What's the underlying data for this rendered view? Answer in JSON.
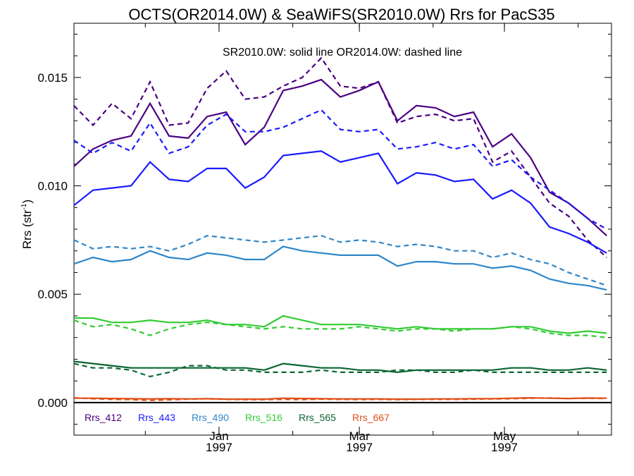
{
  "chart_data": {
    "type": "line",
    "title": "OCTS(OR2014.0W) & SeaWiFS(SR2010.0W)  Rrs for PacS35",
    "annotation": "SR2010.0W: solid line   OR2014.0W: dashed line",
    "ylabel": "Rrs (str",
    "ylabel_sup": "-1",
    "ylabel_close": ")",
    "ylim": [
      -0.0015,
      0.0175
    ],
    "xlim": [
      "1996-11-01",
      "1997-06-15"
    ],
    "ytick_values": [
      0.0,
      0.005,
      0.01,
      0.015
    ],
    "ytick_labels": [
      "0.000",
      "0.005",
      "0.010",
      "0.015"
    ],
    "xtick_labels": [
      {
        "date": "1997-01-01",
        "month": "Jan",
        "year": "1997"
      },
      {
        "date": "1997-03-01",
        "month": "Mar",
        "year": "1997"
      },
      {
        "date": "1997-05-01",
        "month": "May",
        "year": "1997"
      }
    ],
    "x": [
      "1996-11-01",
      "1996-11-09",
      "1996-11-17",
      "1996-11-25",
      "1996-12-03",
      "1996-12-11",
      "1996-12-19",
      "1996-12-27",
      "1997-01-04",
      "1997-01-12",
      "1997-01-20",
      "1997-01-28",
      "1997-02-05",
      "1997-02-13",
      "1997-02-21",
      "1997-03-01",
      "1997-03-09",
      "1997-03-17",
      "1997-03-25",
      "1997-04-02",
      "1997-04-10",
      "1997-04-18",
      "1997-04-26",
      "1997-05-04",
      "1997-05-12",
      "1997-05-20",
      "1997-05-28",
      "1997-06-05",
      "1997-06-13"
    ],
    "series": [
      {
        "name": "Rrs_412",
        "color": "#4b0082",
        "solid": [
          0.0109,
          0.0117,
          0.0121,
          0.0123,
          0.0138,
          0.0123,
          0.0122,
          0.0132,
          0.0134,
          0.0119,
          0.0127,
          0.0144,
          0.0146,
          0.0149,
          0.0141,
          0.0144,
          0.0148,
          0.013,
          0.0137,
          0.0136,
          0.0132,
          0.0134,
          0.0118,
          0.0124,
          0.0113,
          0.0097,
          0.0092,
          0.0085,
          0.0077
        ],
        "dashed": [
          0.0137,
          0.0128,
          0.0138,
          0.0131,
          0.0148,
          0.0128,
          0.0129,
          0.0145,
          0.0153,
          0.014,
          0.0141,
          0.0146,
          0.015,
          0.0159,
          0.0146,
          0.0145,
          0.0148,
          0.0129,
          0.0132,
          0.0133,
          0.013,
          0.0131,
          0.0111,
          0.0116,
          0.0104,
          0.0092,
          0.0086,
          0.0075,
          0.0067
        ]
      },
      {
        "name": "Rrs_443",
        "color": "#1a1aff",
        "solid": [
          0.0091,
          0.0098,
          0.0099,
          0.01,
          0.0111,
          0.0103,
          0.0102,
          0.0108,
          0.0108,
          0.0099,
          0.0104,
          0.0114,
          0.0115,
          0.0116,
          0.0111,
          0.0113,
          0.0115,
          0.0101,
          0.0106,
          0.0105,
          0.0102,
          0.0103,
          0.0094,
          0.0098,
          0.0092,
          0.0081,
          0.0078,
          0.0074,
          0.0069
        ],
        "dashed": [
          0.0121,
          0.0115,
          0.012,
          0.0116,
          0.0129,
          0.0115,
          0.0118,
          0.0128,
          0.0133,
          0.0125,
          0.0125,
          0.0127,
          0.0131,
          0.0135,
          0.0126,
          0.0125,
          0.0126,
          0.0117,
          0.0118,
          0.012,
          0.0117,
          0.0119,
          0.0109,
          0.0112,
          0.0104,
          0.0098,
          0.0092,
          0.0085,
          0.008
        ]
      },
      {
        "name": "Rrs_490",
        "color": "#2e86c8",
        "solid": [
          0.0064,
          0.0067,
          0.0065,
          0.0066,
          0.007,
          0.0067,
          0.0066,
          0.0069,
          0.0068,
          0.0066,
          0.0066,
          0.0072,
          0.007,
          0.0069,
          0.0068,
          0.0068,
          0.0068,
          0.0063,
          0.0065,
          0.0065,
          0.0064,
          0.0064,
          0.0062,
          0.0063,
          0.0061,
          0.0057,
          0.0055,
          0.0054,
          0.0052
        ],
        "dashed": [
          0.0075,
          0.0071,
          0.0072,
          0.0071,
          0.0072,
          0.007,
          0.0073,
          0.0077,
          0.0076,
          0.0075,
          0.0074,
          0.0075,
          0.0076,
          0.0077,
          0.0074,
          0.0075,
          0.0074,
          0.0072,
          0.0073,
          0.0072,
          0.007,
          0.007,
          0.0067,
          0.0069,
          0.0066,
          0.0064,
          0.006,
          0.0057,
          0.0054
        ]
      },
      {
        "name": "Rrs_516",
        "color": "#33cc33",
        "solid": [
          0.0039,
          0.0039,
          0.0037,
          0.0037,
          0.0038,
          0.0037,
          0.0037,
          0.0038,
          0.0036,
          0.0036,
          0.0035,
          0.004,
          0.0038,
          0.0036,
          0.0036,
          0.0036,
          0.0035,
          0.0034,
          0.0035,
          0.0034,
          0.0034,
          0.0034,
          0.0034,
          0.0035,
          0.0035,
          0.0033,
          0.0032,
          0.0033,
          0.0032
        ],
        "dashed": [
          0.0038,
          0.0035,
          0.0036,
          0.0034,
          0.0031,
          0.0034,
          0.0036,
          0.0037,
          0.0036,
          0.0035,
          0.0034,
          0.0035,
          0.0034,
          0.0034,
          0.0034,
          0.0035,
          0.0034,
          0.0033,
          0.0034,
          0.0034,
          0.0033,
          0.0034,
          0.0034,
          0.0035,
          0.0034,
          0.0032,
          0.0031,
          0.0031,
          0.003
        ]
      },
      {
        "name": "Rrs_565",
        "color": "#0a6632",
        "solid": [
          0.0019,
          0.0018,
          0.0017,
          0.0016,
          0.0016,
          0.0016,
          0.0016,
          0.0016,
          0.0016,
          0.0016,
          0.0015,
          0.0018,
          0.0017,
          0.0016,
          0.0016,
          0.0015,
          0.0015,
          0.0014,
          0.0015,
          0.0015,
          0.0015,
          0.0015,
          0.0015,
          0.0016,
          0.0016,
          0.0015,
          0.0015,
          0.0016,
          0.0015
        ],
        "dashed": [
          0.0018,
          0.0016,
          0.0016,
          0.0015,
          0.0012,
          0.0014,
          0.0017,
          0.0017,
          0.0015,
          0.0015,
          0.0014,
          0.0014,
          0.0014,
          0.0015,
          0.0014,
          0.0014,
          0.0014,
          0.0015,
          0.0015,
          0.0014,
          0.0014,
          0.0015,
          0.0014,
          0.0014,
          0.0014,
          0.0014,
          0.0014,
          0.0014,
          0.0014
        ]
      },
      {
        "name": "Rrs_667",
        "color": "#e0501a",
        "solid": [
          0.0002,
          0.0002,
          0.00019,
          0.00018,
          0.00017,
          0.00018,
          0.00017,
          0.00018,
          0.00016,
          0.00016,
          0.00016,
          0.0002,
          0.00019,
          0.00018,
          0.00017,
          0.00017,
          0.00017,
          0.00016,
          0.00016,
          0.00017,
          0.00017,
          0.00018,
          0.00018,
          0.0002,
          0.00022,
          0.0002,
          0.00019,
          0.00021,
          0.0002
        ],
        "dashed": [
          0.00022,
          0.00018,
          0.00015,
          0.00014,
          0.0001,
          0.00013,
          0.00016,
          0.00018,
          0.00015,
          0.00014,
          0.00014,
          0.00015,
          0.00014,
          0.00016,
          0.00015,
          0.00014,
          0.00015,
          0.00014,
          0.00015,
          0.00015,
          0.00015,
          0.00016,
          0.00017,
          0.00018,
          0.0002,
          0.00021,
          0.00019,
          0.0002,
          0.00019
        ]
      }
    ],
    "zero_line": true,
    "grid": false,
    "legend_placement": "bottom-left"
  }
}
